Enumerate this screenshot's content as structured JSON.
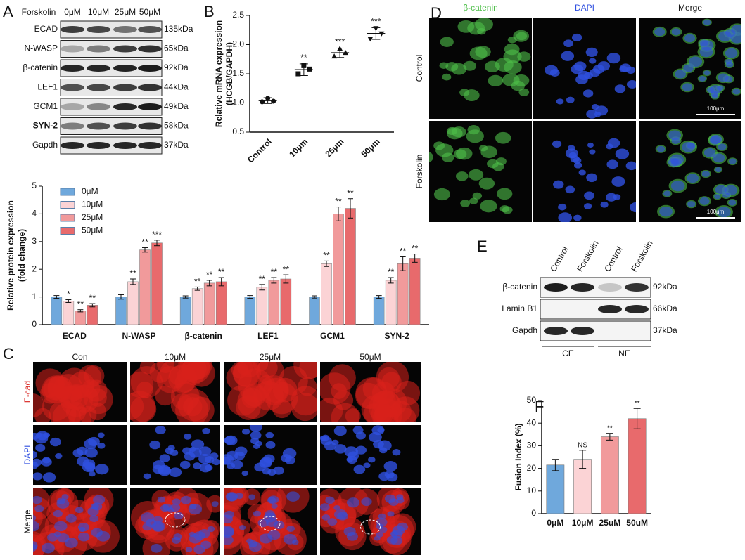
{
  "panel_letters": [
    "A",
    "B",
    "C",
    "D",
    "E",
    "F"
  ],
  "blot_a": {
    "treatment": "Forskolin",
    "lanes": [
      "0μM",
      "10μM",
      "25μM",
      "50μM"
    ],
    "rows": [
      {
        "name": "ECAD",
        "size": "135kDa"
      },
      {
        "name": "N-WASP",
        "size": "65kDa"
      },
      {
        "name": "β-catenin",
        "size": "92kDa"
      },
      {
        "name": "LEF1",
        "size": "44kDa"
      },
      {
        "name": "GCM1",
        "size": "49kDa"
      },
      {
        "name": "SYN-2",
        "size": "58kDa"
      },
      {
        "name": "Gapdh",
        "size": "37kDa"
      }
    ]
  },
  "micrographs_c": {
    "columns": [
      "Con",
      "10μM",
      "25μM",
      "50μM"
    ],
    "rows": [
      "E-cad",
      "DAPI",
      "Merge"
    ]
  },
  "micrographs_d": {
    "columns": [
      "β-catenin",
      "DAPI",
      "Merge"
    ],
    "rows": [
      "Control",
      "Forskolin"
    ],
    "scale_bar": "100μm"
  },
  "blot_e": {
    "lanes": [
      "Control",
      "Forskolin",
      "Control",
      "Forskolin"
    ],
    "rows": [
      {
        "name": "β-catenin",
        "size": "92kDa"
      },
      {
        "name": "Lamin B1",
        "size": "66kDa"
      },
      {
        "name": "Gapdh",
        "size": "37kDa"
      }
    ],
    "fractions": [
      "CE",
      "NE"
    ]
  },
  "chart_data": [
    {
      "type": "bar",
      "ylabel": [
        "Relative protein expression",
        "(fold change)"
      ],
      "categories": [
        "ECAD",
        "N-WASP",
        "β-catenin",
        "LEF1",
        "GCM1",
        "SYN-2"
      ],
      "series": [
        {
          "name": "0μM",
          "color": "#6fa8dc",
          "values": [
            1,
            1,
            1,
            1,
            1,
            1
          ],
          "errors": [
            0.05,
            0.08,
            0.04,
            0.05,
            0.04,
            0.05
          ]
        },
        {
          "name": "10μM",
          "color": "#fbd3d5",
          "values": [
            0.85,
            1.55,
            1.3,
            1.35,
            2.2,
            1.6
          ],
          "errors": [
            0.05,
            0.1,
            0.06,
            0.1,
            0.1,
            0.1
          ],
          "annotations": [
            "*",
            "**",
            "**",
            "**",
            "**",
            "**"
          ]
        },
        {
          "name": "25μM",
          "color": "#f19a9b",
          "values": [
            0.5,
            2.7,
            1.5,
            1.6,
            4.0,
            2.2
          ],
          "errors": [
            0.04,
            0.08,
            0.1,
            0.1,
            0.25,
            0.25
          ],
          "annotations": [
            "**",
            "**",
            "**",
            "**",
            "**",
            "**"
          ]
        },
        {
          "name": "50μM",
          "color": "#e86a6c",
          "values": [
            0.7,
            2.95,
            1.55,
            1.65,
            4.2,
            2.4
          ],
          "errors": [
            0.06,
            0.1,
            0.15,
            0.15,
            0.35,
            0.15
          ],
          "annotations": [
            "**",
            "***",
            "**",
            "**",
            "**",
            "**"
          ]
        }
      ],
      "ylim": [
        0,
        5
      ],
      "yticks": [
        0,
        1,
        2,
        3,
        4,
        5
      ]
    },
    {
      "type": "scatter",
      "ylabel": [
        "Relative mRNA expression",
        "(HCGB/GAPDH)"
      ],
      "categories": [
        "Control",
        "10μm",
        "25μm",
        "50μm"
      ],
      "points": [
        [
          1.08,
          1.02,
          1.03
        ],
        [
          1.64,
          1.5,
          1.58
        ],
        [
          1.93,
          1.8,
          1.86
        ],
        [
          2.28,
          2.1,
          2.19
        ]
      ],
      "means": [
        1.04,
        1.57,
        1.86,
        2.19
      ],
      "errors": [
        0.05,
        0.1,
        0.08,
        0.1
      ],
      "annotations": [
        null,
        "**",
        "***",
        "***"
      ],
      "ylim": [
        0.5,
        2.5
      ],
      "yticks": [
        {
          "value": 0.5,
          "label": "0.5"
        },
        {
          "value": 1,
          "label": "1.0"
        },
        {
          "value": 1.5,
          "label": "1.5"
        },
        {
          "value": 2,
          "label": "2.0"
        },
        {
          "value": 2.5,
          "label": "2.5"
        }
      ]
    },
    {
      "type": "bar",
      "ylabel": [
        "Fusion Index (%)"
      ],
      "categories": [
        "0μM",
        "10μM",
        "25uM",
        "50uM"
      ],
      "colors": [
        "#6fa8dc",
        "#fbd3d5",
        "#f19a9b",
        "#e86a6c"
      ],
      "values": [
        21.5,
        24,
        34,
        42
      ],
      "errors": [
        2.5,
        4,
        1.5,
        4.5
      ],
      "annotations": [
        null,
        "NS",
        "**",
        "**"
      ],
      "ylim": [
        0,
        50
      ],
      "yticks": [
        0,
        10,
        20,
        30,
        40,
        50
      ]
    }
  ]
}
